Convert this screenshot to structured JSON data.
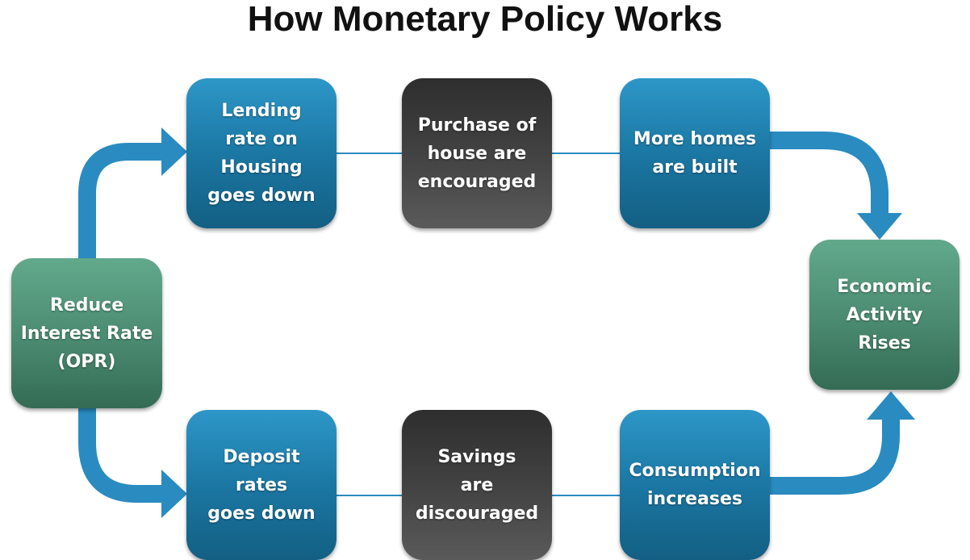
{
  "title": "How Monetary Policy Works",
  "colors": {
    "blue_box": "#1b77a3",
    "dark_box": "#444444",
    "green_box": "#4a8a70",
    "arrow": "#2a8bc0",
    "connector_line": "#2a8bc0"
  },
  "nodes": {
    "reduce_rate": "Reduce\nInterest Rate\n(OPR)",
    "lending_rate": "Lending\nrate on\nHousing\ngoes down",
    "purchase_house": "Purchase of\nhouse are\nencouraged",
    "more_homes": "More homes\nare built",
    "economic_activity": "Economic\nActivity\nRises",
    "deposit_rates": "Deposit\nrates\ngoes down",
    "savings": "Savings\nare\ndiscouraged",
    "consumption": "Consumption\nincreases"
  }
}
